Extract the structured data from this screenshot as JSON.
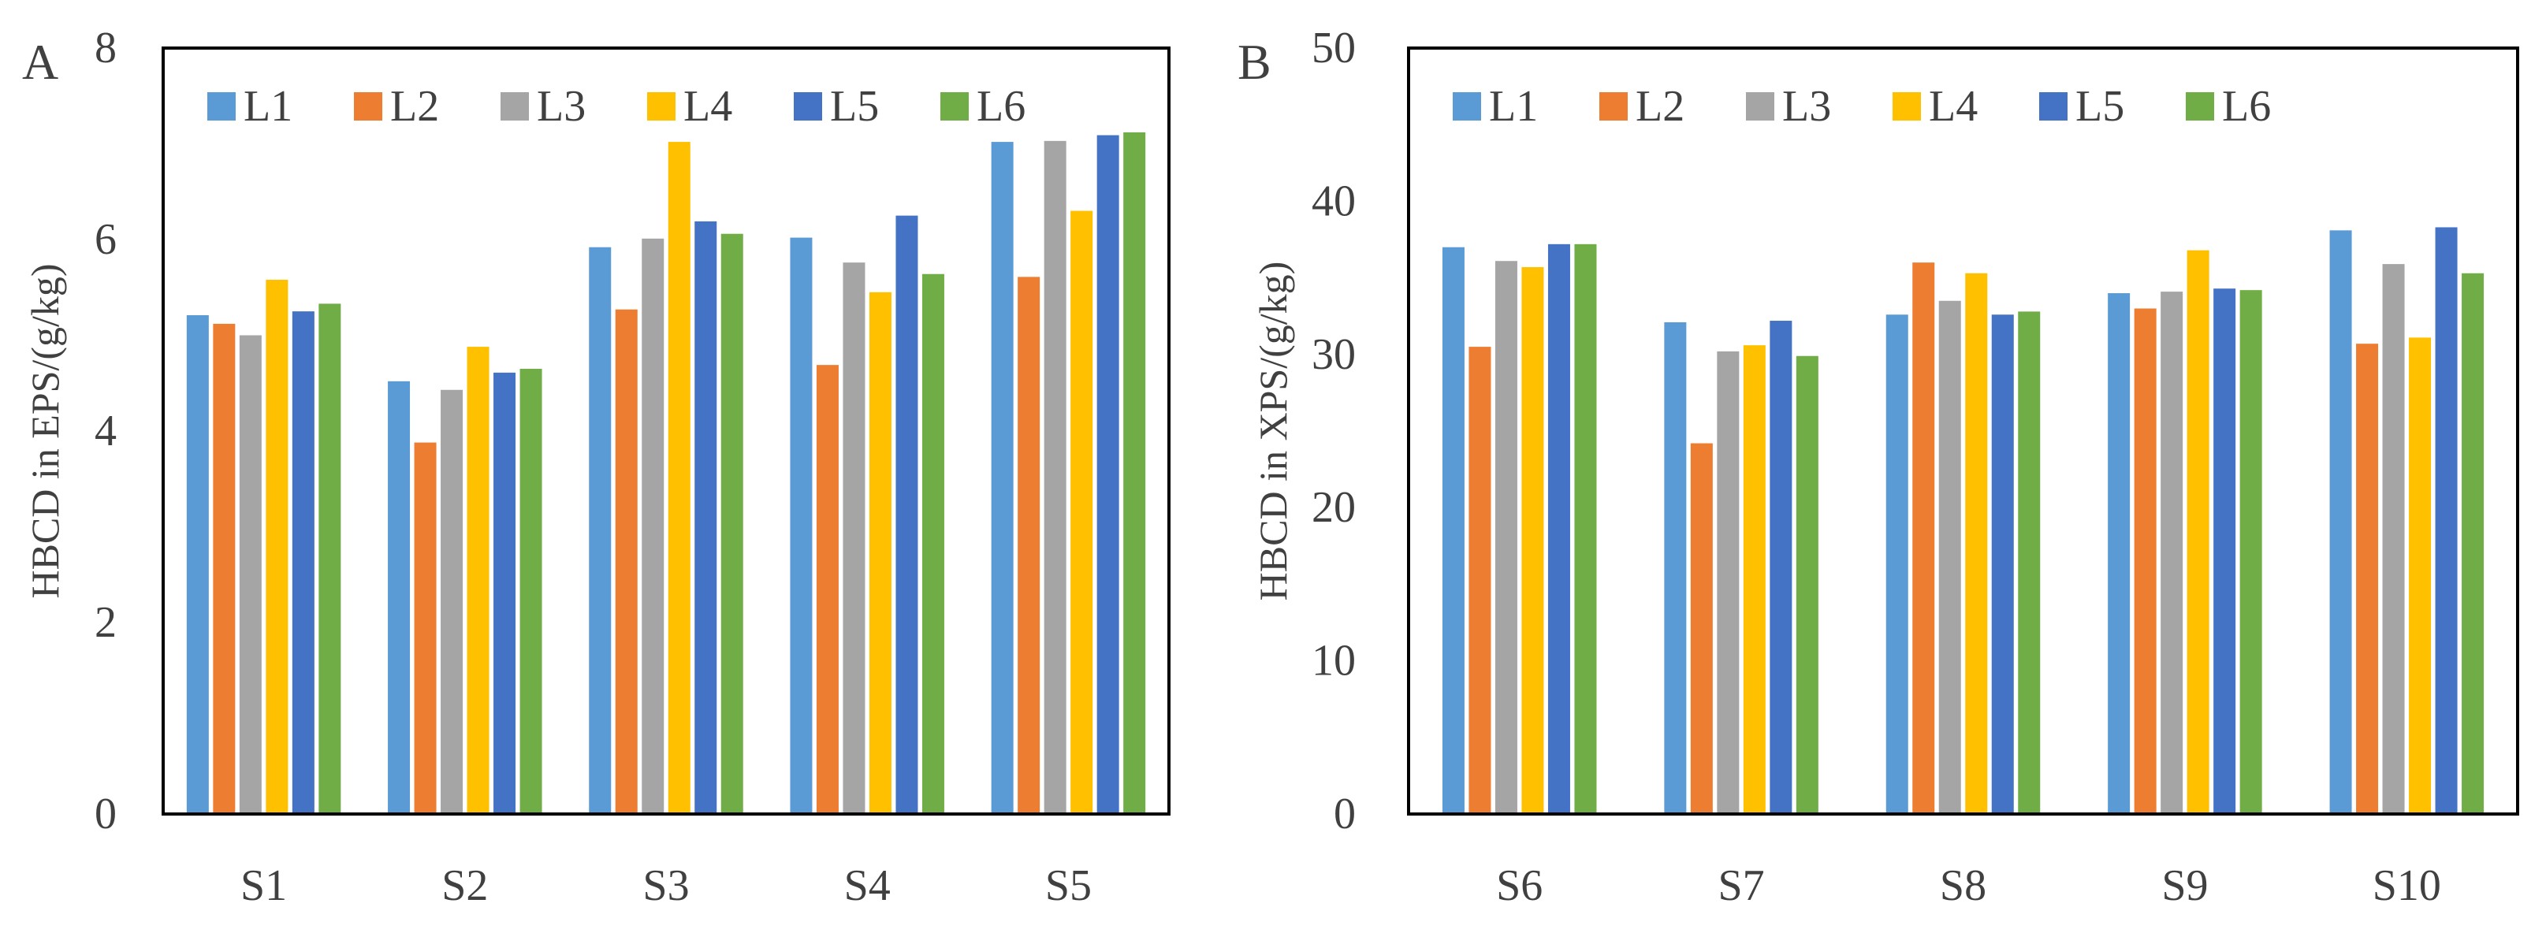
{
  "series_names": [
    "L1",
    "L2",
    "L3",
    "L4",
    "L5",
    "L6"
  ],
  "colors": [
    "#5B9BD5",
    "#ED7D31",
    "#A5A5A5",
    "#FFC000",
    "#4472C4",
    "#70AD47"
  ],
  "chart_data": [
    {
      "type": "bar",
      "panel_label": "A",
      "ylabel": "HBCD in EPS/(g/kg)",
      "xlabel": "",
      "ylim": [
        0,
        8
      ],
      "yticks": [
        0,
        2,
        4,
        6,
        8
      ],
      "categories": [
        "S1",
        "S2",
        "S3",
        "S4",
        "S5"
      ],
      "legend": "top, inside plot, horizontal",
      "grid": false,
      "series": [
        {
          "name": "L1",
          "values": [
            5.21,
            4.52,
            5.92,
            6.02,
            7.02
          ]
        },
        {
          "name": "L2",
          "values": [
            5.12,
            3.88,
            5.27,
            4.69,
            5.61
          ]
        },
        {
          "name": "L3",
          "values": [
            5.0,
            4.43,
            6.01,
            5.76,
            7.03
          ]
        },
        {
          "name": "L4",
          "values": [
            5.58,
            4.88,
            7.02,
            5.45,
            6.3
          ]
        },
        {
          "name": "L5",
          "values": [
            5.25,
            4.61,
            6.19,
            6.25,
            7.09
          ]
        },
        {
          "name": "L6",
          "values": [
            5.33,
            4.65,
            6.06,
            5.64,
            7.12
          ]
        }
      ]
    },
    {
      "type": "bar",
      "panel_label": "B",
      "ylabel": "HBCD in XPS/(g/kg)",
      "xlabel": "",
      "ylim": [
        0,
        50
      ],
      "yticks": [
        0,
        10,
        20,
        30,
        40,
        50
      ],
      "categories": [
        "S6",
        "S7",
        "S8",
        "S9",
        "S10"
      ],
      "legend": "top, inside plot, horizontal",
      "grid": false,
      "series": [
        {
          "name": "L1",
          "values": [
            37.0,
            32.1,
            32.6,
            34.0,
            38.1
          ]
        },
        {
          "name": "L2",
          "values": [
            30.5,
            24.2,
            36.0,
            33.0,
            30.7
          ]
        },
        {
          "name": "L3",
          "values": [
            36.1,
            30.2,
            33.5,
            34.1,
            35.9
          ]
        },
        {
          "name": "L4",
          "values": [
            35.7,
            30.6,
            35.3,
            36.8,
            31.1
          ]
        },
        {
          "name": "L5",
          "values": [
            37.2,
            32.2,
            32.6,
            34.3,
            38.3
          ]
        },
        {
          "name": "L6",
          "values": [
            37.2,
            29.9,
            32.8,
            34.2,
            35.3
          ]
        }
      ]
    }
  ]
}
